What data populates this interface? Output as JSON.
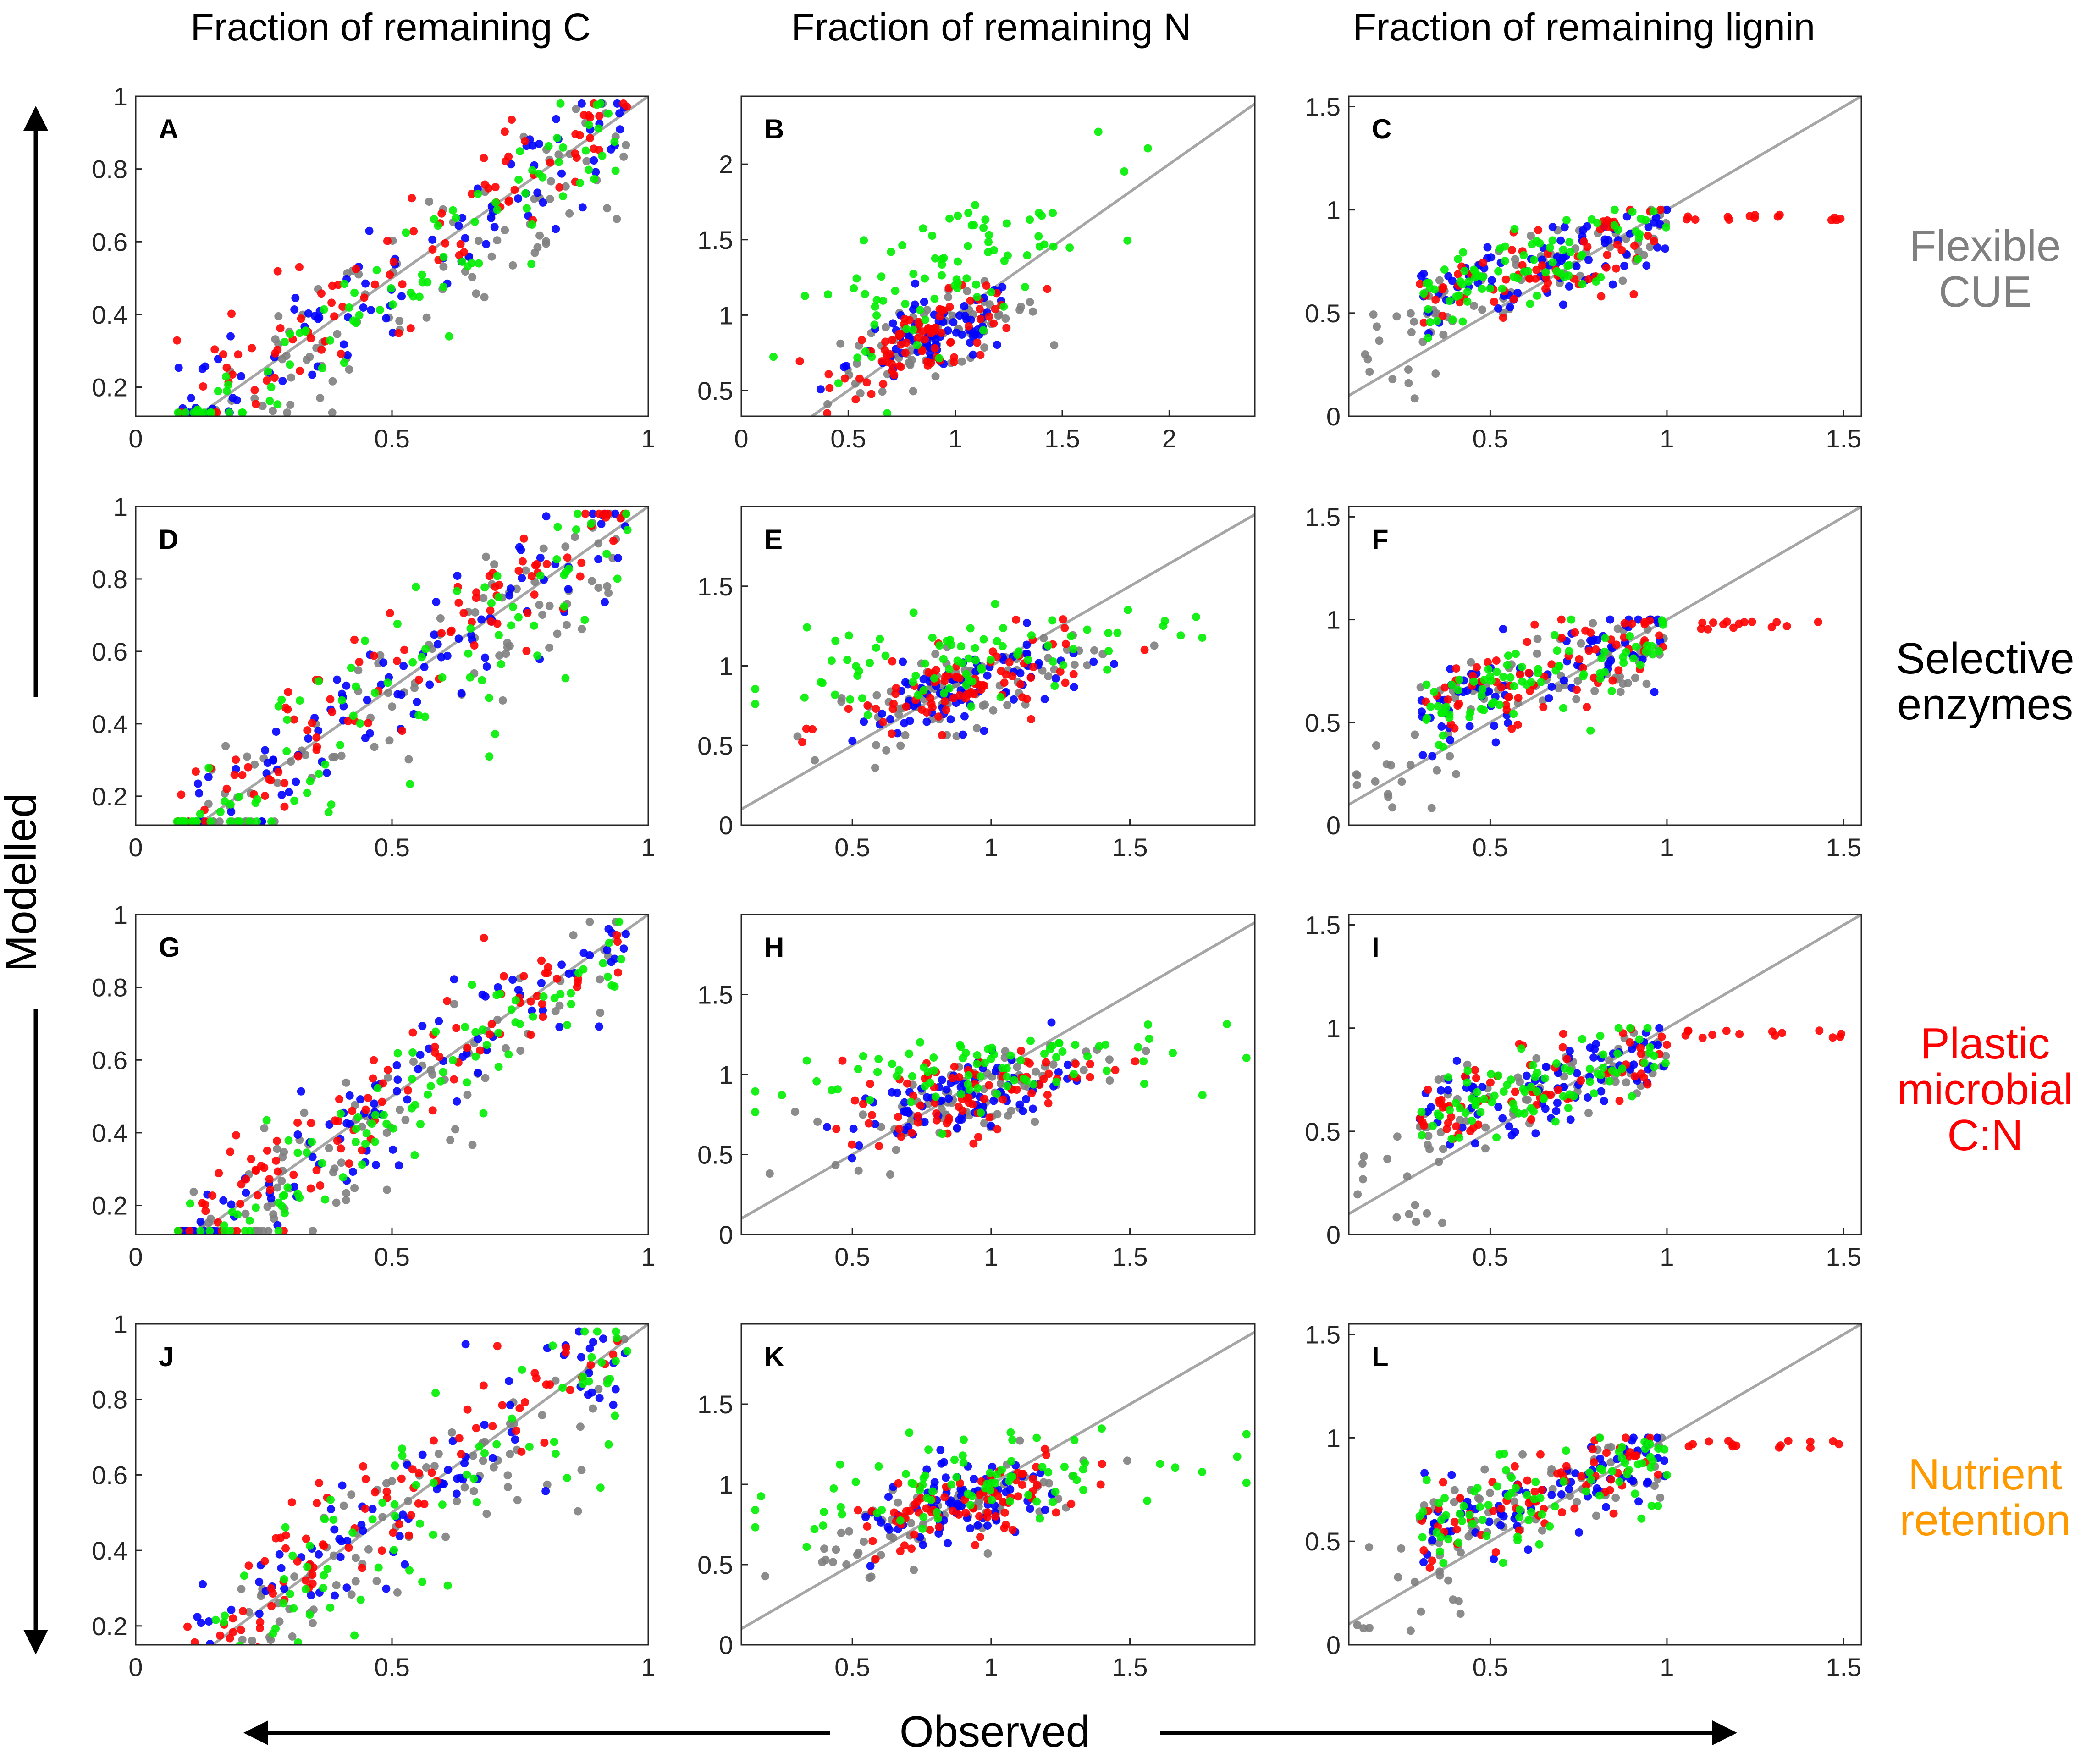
{
  "chart_data": {
    "type": "scatter",
    "column_titles": [
      "Fraction of remaining C",
      "Fraction of remaining N",
      "Fraction of remaining lignin"
    ],
    "xlabel": "Observed",
    "ylabel": "Modelled",
    "one_to_one_line_color": "#a6a6a6",
    "series_colors": [
      "#808080",
      "#0000ff",
      "#ff0000",
      "#00ee00"
    ],
    "rows": [
      {
        "label_lines": [
          "Flexible",
          "CUE"
        ],
        "label_color": "#808080"
      },
      {
        "label_lines": [
          "Selective",
          "enzymes"
        ],
        "label_color": "#000000"
      },
      {
        "label_lines": [
          "Plastic",
          "microbial",
          "C:N"
        ],
        "label_color": "#ff0000"
      },
      {
        "label_lines": [
          "Nutrient",
          "retention"
        ],
        "label_color": "#ff9900"
      }
    ],
    "panels": [
      {
        "letter": "A",
        "kind": "C",
        "xlim": [
          0,
          1
        ],
        "ylim": [
          0.12,
          1
        ],
        "xticks": [
          "0",
          "0.5",
          "1"
        ],
        "yticks": [
          "0.2",
          "0.4",
          "0.6",
          "0.8",
          "1"
        ]
      },
      {
        "letter": "B",
        "kind": "N",
        "xlim": [
          0,
          2.4
        ],
        "ylim": [
          0.33,
          2.45
        ],
        "xticks": [
          "0",
          "0.5",
          "1",
          "1.5",
          "2"
        ],
        "yticks": [
          "0.5",
          "1",
          "1.5",
          "2"
        ]
      },
      {
        "letter": "C",
        "kind": "L",
        "xlim": [
          0.1,
          1.55
        ],
        "ylim": [
          0,
          1.55
        ],
        "xticks": [
          "0.5",
          "1",
          "1.5"
        ],
        "yticks": [
          "0",
          "0.5",
          "1",
          "1.5"
        ]
      },
      {
        "letter": "D",
        "kind": "C",
        "xlim": [
          0,
          1
        ],
        "ylim": [
          0.12,
          1
        ],
        "xticks": [
          "0",
          "0.5",
          "1"
        ],
        "yticks": [
          "0.2",
          "0.4",
          "0.6",
          "0.8",
          "1"
        ]
      },
      {
        "letter": "E",
        "kind": "N",
        "xlim": [
          0.1,
          1.95
        ],
        "ylim": [
          0,
          2
        ],
        "xticks": [
          "0.5",
          "1",
          "1.5"
        ],
        "yticks": [
          "0",
          "0.5",
          "1",
          "1.5"
        ]
      },
      {
        "letter": "F",
        "kind": "L",
        "xlim": [
          0.1,
          1.55
        ],
        "ylim": [
          0,
          1.55
        ],
        "xticks": [
          "0.5",
          "1",
          "1.5"
        ],
        "yticks": [
          "0",
          "0.5",
          "1",
          "1.5"
        ]
      },
      {
        "letter": "G",
        "kind": "C",
        "xlim": [
          0,
          1
        ],
        "ylim": [
          0.12,
          1
        ],
        "xticks": [
          "0",
          "0.5",
          "1"
        ],
        "yticks": [
          "0.2",
          "0.4",
          "0.6",
          "0.8",
          "1"
        ]
      },
      {
        "letter": "H",
        "kind": "N",
        "xlim": [
          0.1,
          1.95
        ],
        "ylim": [
          0,
          2
        ],
        "xticks": [
          "0.5",
          "1",
          "1.5"
        ],
        "yticks": [
          "0",
          "0.5",
          "1",
          "1.5"
        ]
      },
      {
        "letter": "I",
        "kind": "L",
        "xlim": [
          0.1,
          1.55
        ],
        "ylim": [
          0,
          1.55
        ],
        "xticks": [
          "0.5",
          "1",
          "1.5"
        ],
        "yticks": [
          "0",
          "0.5",
          "1",
          "1.5"
        ]
      },
      {
        "letter": "J",
        "kind": "C",
        "xlim": [
          0,
          1
        ],
        "ylim": [
          0.15,
          1
        ],
        "xticks": [
          "0",
          "0.5",
          "1"
        ],
        "yticks": [
          "0.2",
          "0.4",
          "0.6",
          "0.8",
          "1"
        ]
      },
      {
        "letter": "K",
        "kind": "N",
        "xlim": [
          0.1,
          1.95
        ],
        "ylim": [
          0,
          2
        ],
        "xticks": [
          "0.5",
          "1",
          "1.5"
        ],
        "yticks": [
          "0",
          "0.5",
          "1",
          "1.5"
        ]
      },
      {
        "letter": "L",
        "kind": "L",
        "xlim": [
          0.1,
          1.55
        ],
        "ylim": [
          0,
          1.55
        ],
        "xticks": [
          "0.5",
          "1",
          "1.5"
        ],
        "yticks": [
          "0",
          "0.5",
          "1",
          "1.5"
        ]
      }
    ]
  }
}
